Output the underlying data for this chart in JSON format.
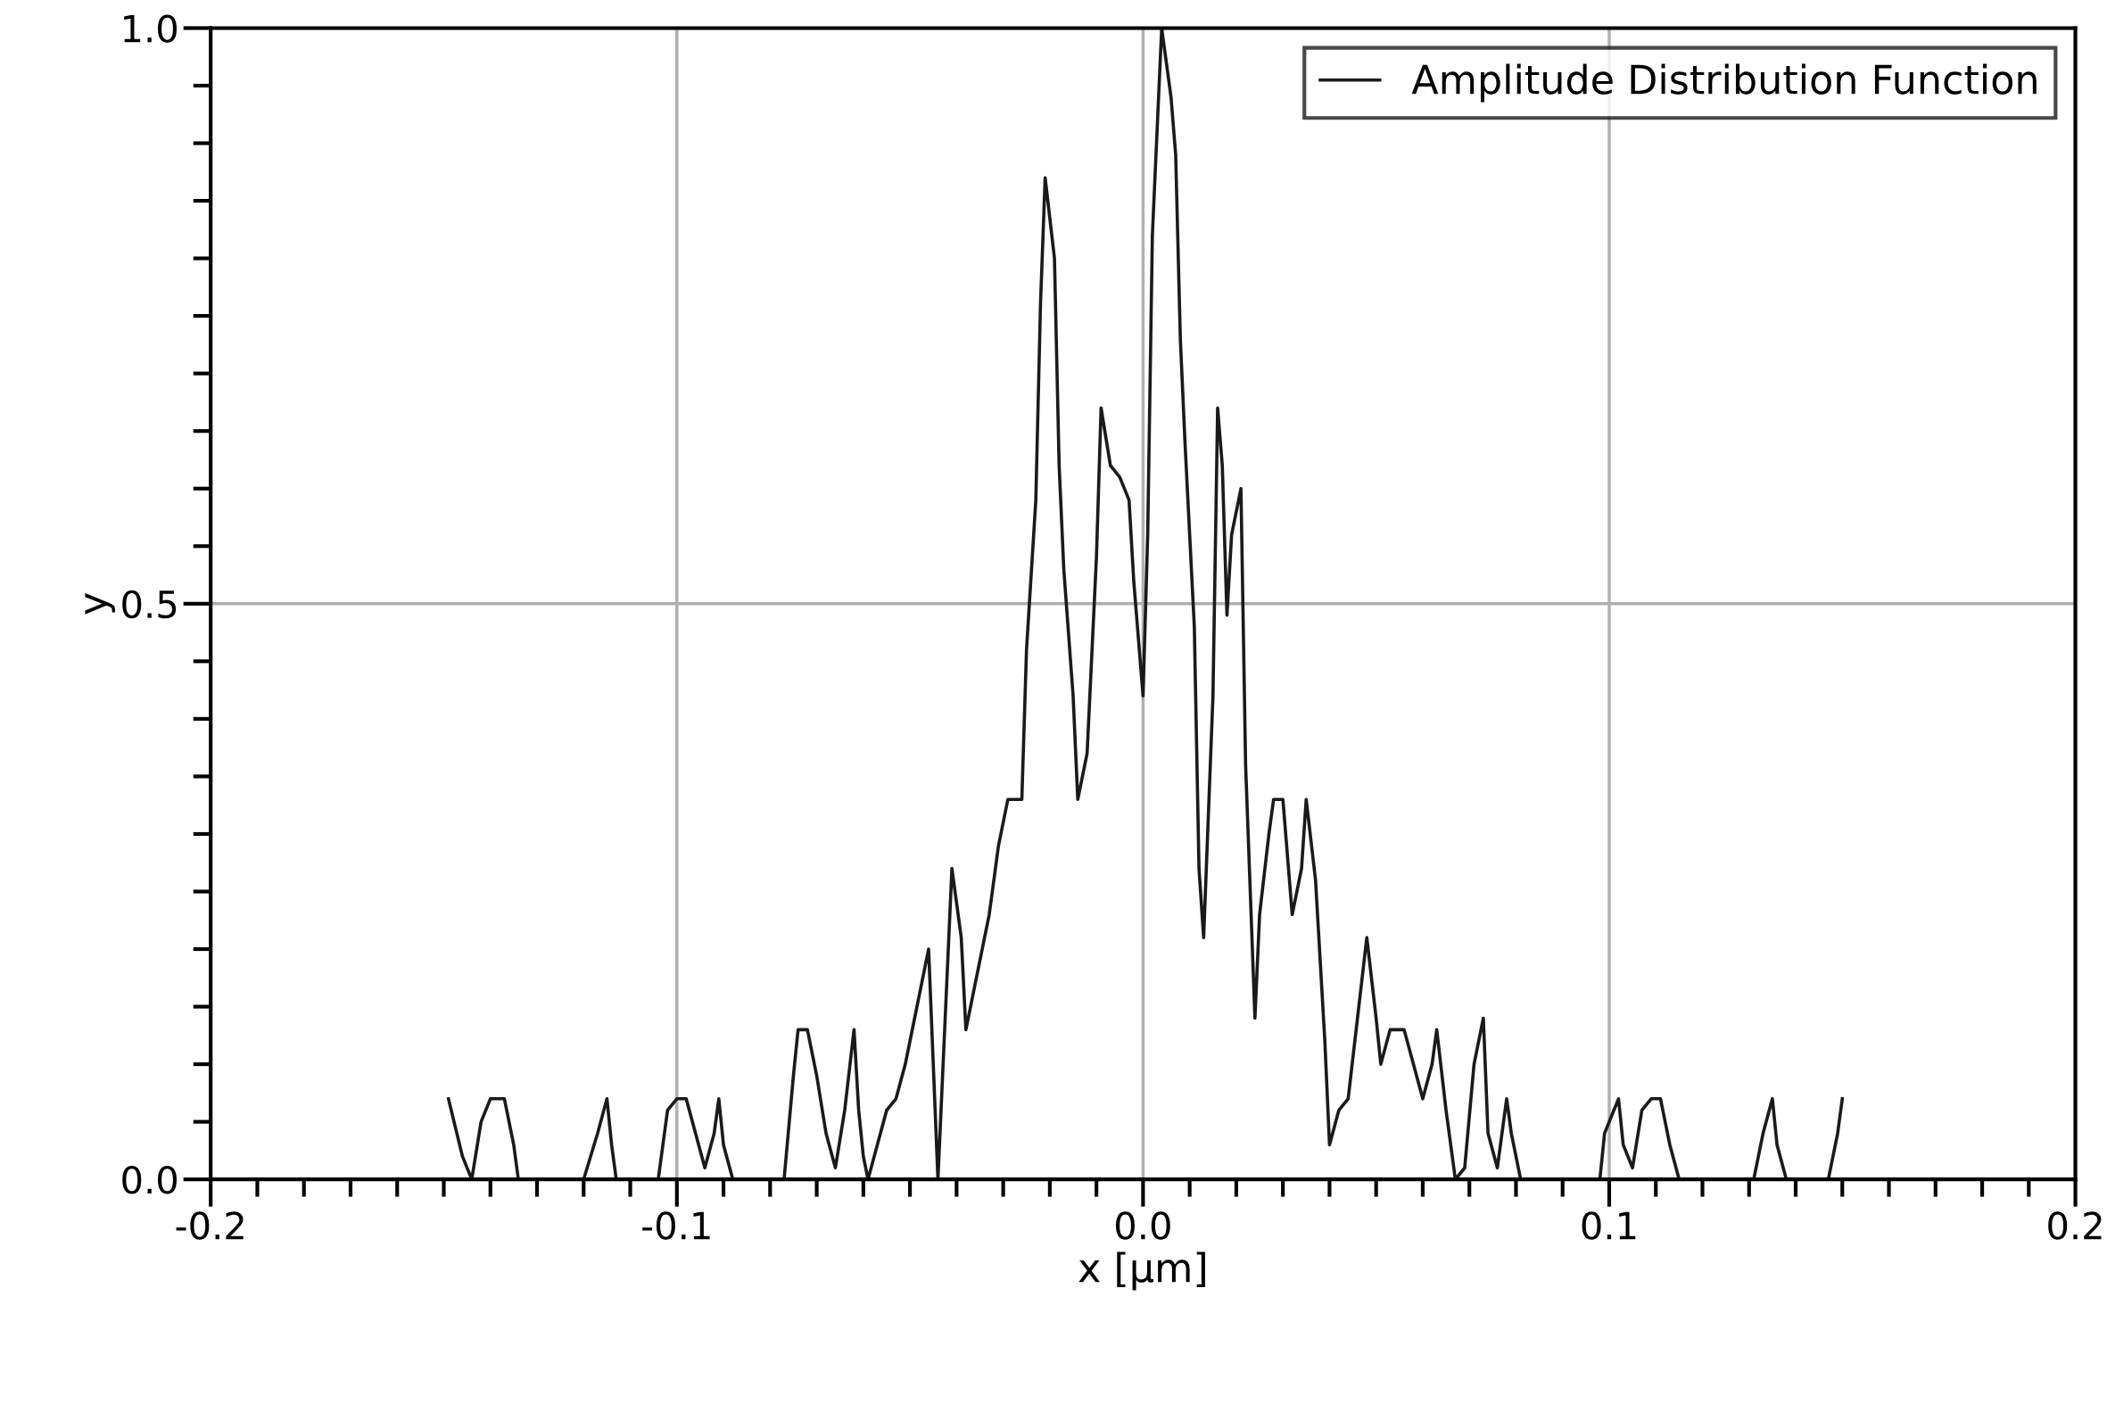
{
  "chart_data": {
    "type": "line",
    "xlabel": "x [µm]",
    "ylabel": "y",
    "xlim": [
      -0.2,
      0.2
    ],
    "ylim": [
      0,
      1.0
    ],
    "xticks": [
      {
        "value": -0.2,
        "label": "-0.2"
      },
      {
        "value": -0.1,
        "label": "-0.1"
      },
      {
        "value": 0.0,
        "label": "0.0"
      },
      {
        "value": 0.1,
        "label": "0.1"
      },
      {
        "value": 0.2,
        "label": "0.2"
      }
    ],
    "yticks": [
      {
        "value": 0.0,
        "label": "0.0"
      },
      {
        "value": 0.5,
        "label": "0.5"
      },
      {
        "value": 1.0,
        "label": "1.0"
      }
    ],
    "grid": true,
    "legend": "top right",
    "marker": "none",
    "line_style": "solid",
    "series": [
      {
        "name": "Amplitude Distribution Function",
        "color": "#1a1a1a",
        "x": [
          -0.149,
          -0.146,
          -0.144,
          -0.142,
          -0.14,
          -0.137,
          -0.135,
          -0.134,
          -0.12,
          -0.117,
          -0.115,
          -0.114,
          -0.113,
          -0.104,
          -0.102,
          -0.1,
          -0.098,
          -0.096,
          -0.094,
          -0.092,
          -0.091,
          -0.09,
          -0.088,
          -0.077,
          -0.075,
          -0.074,
          -0.072,
          -0.07,
          -0.068,
          -0.066,
          -0.064,
          -0.062,
          -0.061,
          -0.06,
          -0.059,
          -0.057,
          -0.055,
          -0.053,
          -0.051,
          -0.048,
          -0.046,
          -0.045,
          -0.044,
          -0.043,
          -0.041,
          -0.039,
          -0.038,
          -0.035,
          -0.033,
          -0.031,
          -0.029,
          -0.026,
          -0.025,
          -0.023,
          -0.022,
          -0.021,
          -0.019,
          -0.018,
          -0.017,
          -0.015,
          -0.014,
          -0.012,
          -0.01,
          -0.009,
          -0.007,
          -0.005,
          -0.003,
          -0.002,
          0.0,
          0.001,
          0.002,
          0.004,
          0.006,
          0.007,
          0.008,
          0.009,
          0.011,
          0.012,
          0.013,
          0.015,
          0.016,
          0.017,
          0.018,
          0.019,
          0.021,
          0.022,
          0.024,
          0.025,
          0.027,
          0.028,
          0.03,
          0.032,
          0.034,
          0.035,
          0.037,
          0.039,
          0.04,
          0.042,
          0.044,
          0.046,
          0.048,
          0.05,
          0.051,
          0.053,
          0.056,
          0.058,
          0.06,
          0.062,
          0.063,
          0.065,
          0.067,
          0.069,
          0.071,
          0.073,
          0.074,
          0.076,
          0.078,
          0.079,
          0.081,
          0.098,
          0.099,
          0.102,
          0.103,
          0.105,
          0.107,
          0.109,
          0.111,
          0.113,
          0.115,
          0.131,
          0.133,
          0.135,
          0.136,
          0.138,
          0.147,
          0.149,
          0.15
        ],
        "values": [
          0.07,
          0.02,
          0,
          0.05,
          0.07,
          0.07,
          0.03,
          0,
          0,
          0.04,
          0.07,
          0.03,
          0,
          0,
          0.06,
          0.07,
          0.07,
          0.04,
          0.01,
          0.04,
          0.07,
          0.03,
          0,
          0,
          0.09,
          0.13,
          0.13,
          0.09,
          0.04,
          0.01,
          0.06,
          0.13,
          0.06,
          0.02,
          0,
          0.03,
          0.06,
          0.07,
          0.1,
          0.16,
          0.2,
          0.1,
          0,
          0.09,
          0.27,
          0.21,
          0.13,
          0.19,
          0.23,
          0.29,
          0.33,
          0.33,
          0.46,
          0.59,
          0.76,
          0.87,
          0.8,
          0.62,
          0.53,
          0.42,
          0.33,
          0.37,
          0.54,
          0.67,
          0.62,
          0.61,
          0.59,
          0.52,
          0.42,
          0.56,
          0.82,
          1.0,
          0.94,
          0.89,
          0.73,
          0.64,
          0.48,
          0.27,
          0.21,
          0.42,
          0.67,
          0.62,
          0.49,
          0.56,
          0.6,
          0.36,
          0.14,
          0.23,
          0.3,
          0.33,
          0.33,
          0.23,
          0.27,
          0.33,
          0.26,
          0.12,
          0.03,
          0.06,
          0.07,
          0.14,
          0.21,
          0.14,
          0.1,
          0.13,
          0.13,
          0.1,
          0.07,
          0.1,
          0.13,
          0.06,
          0,
          0.01,
          0.1,
          0.14,
          0.04,
          0.01,
          0.07,
          0.04,
          0,
          0,
          0.04,
          0.07,
          0.03,
          0.01,
          0.06,
          0.07,
          0.07,
          0.03,
          0,
          0,
          0.04,
          0.07,
          0.03,
          0,
          0,
          0.04,
          0.07
        ]
      }
    ]
  }
}
